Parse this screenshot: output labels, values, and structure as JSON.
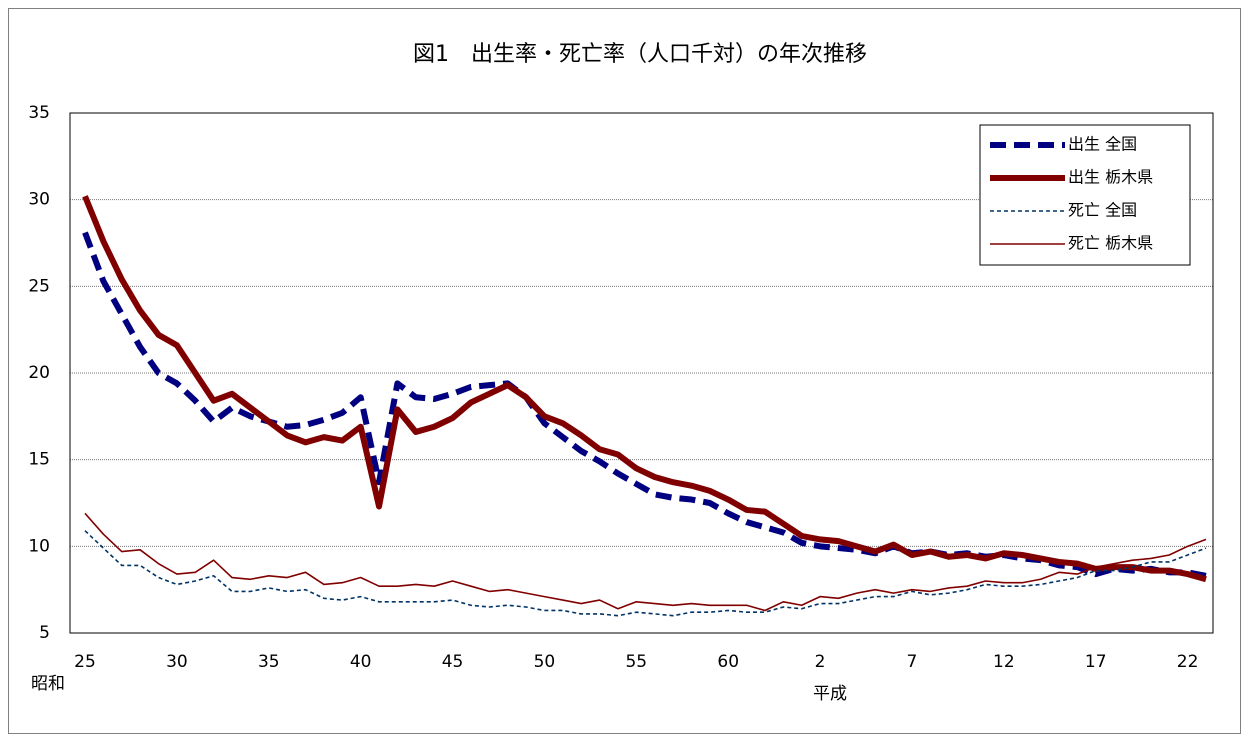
{
  "chart_data": {
    "type": "line",
    "title": "図1　出生率・死亡率（人口千対）の年次推移",
    "era_labels": [
      "昭和",
      "平成"
    ],
    "categories": [
      "25",
      null,
      null,
      null,
      null,
      "30",
      null,
      null,
      null,
      null,
      "35",
      null,
      null,
      null,
      null,
      "40",
      null,
      null,
      null,
      null,
      "45",
      null,
      null,
      null,
      null,
      "50",
      null,
      null,
      null,
      null,
      "55",
      null,
      null,
      null,
      null,
      "60",
      null,
      null,
      null,
      null,
      "2",
      null,
      null,
      null,
      null,
      "7",
      null,
      null,
      null,
      null,
      "12",
      null,
      null,
      null,
      null,
      "17",
      null,
      null,
      null,
      null,
      "22",
      null
    ],
    "ylim": [
      5,
      35
    ],
    "yticks": [
      5,
      10,
      15,
      20,
      25,
      30,
      35
    ],
    "grid": true,
    "legend": "upper right",
    "series": [
      {
        "name": "出生 全国",
        "color": "#000080",
        "dashed": true,
        "bold": true,
        "values": [
          28.1,
          25.3,
          23.4,
          21.5,
          20.0,
          19.4,
          18.4,
          17.2,
          18.0,
          17.5,
          17.2,
          16.9,
          17.0,
          17.3,
          17.7,
          18.6,
          13.7,
          19.4,
          18.6,
          18.5,
          18.8,
          19.2,
          19.3,
          19.4,
          18.6,
          17.1,
          16.3,
          15.5,
          14.9,
          14.2,
          13.6,
          13.0,
          12.8,
          12.7,
          12.5,
          11.9,
          11.4,
          11.1,
          10.8,
          10.2,
          10.0,
          9.9,
          9.8,
          9.6,
          10.0,
          9.6,
          9.7,
          9.5,
          9.6,
          9.4,
          9.5,
          9.3,
          9.2,
          8.9,
          8.8,
          8.4,
          8.7,
          8.6,
          8.7,
          8.5,
          8.5,
          8.3
        ]
      },
      {
        "name": "出生 栃木県",
        "color": "#800000",
        "dashed": false,
        "bold": true,
        "values": [
          30.2,
          27.6,
          25.4,
          23.6,
          22.2,
          21.6,
          20.0,
          18.4,
          18.8,
          18.0,
          17.2,
          16.4,
          16.0,
          16.3,
          16.1,
          16.9,
          12.3,
          17.9,
          16.6,
          16.9,
          17.4,
          18.3,
          18.8,
          19.3,
          18.6,
          17.5,
          17.1,
          16.4,
          15.6,
          15.3,
          14.5,
          14.0,
          13.7,
          13.5,
          13.2,
          12.7,
          12.1,
          12.0,
          11.3,
          10.6,
          10.4,
          10.3,
          10.0,
          9.7,
          10.1,
          9.5,
          9.7,
          9.4,
          9.5,
          9.3,
          9.6,
          9.5,
          9.3,
          9.1,
          9.0,
          8.7,
          8.8,
          8.8,
          8.6,
          8.6,
          8.4,
          8.1
        ]
      },
      {
        "name": "死亡 全国",
        "color": "#003366",
        "dashed": true,
        "bold": false,
        "values": [
          10.9,
          9.9,
          8.9,
          8.9,
          8.2,
          7.8,
          8.0,
          8.3,
          7.4,
          7.4,
          7.6,
          7.4,
          7.5,
          7.0,
          6.9,
          7.1,
          6.8,
          6.8,
          6.8,
          6.8,
          6.9,
          6.6,
          6.5,
          6.6,
          6.5,
          6.3,
          6.3,
          6.1,
          6.1,
          6.0,
          6.2,
          6.1,
          6.0,
          6.2,
          6.2,
          6.3,
          6.2,
          6.2,
          6.5,
          6.4,
          6.7,
          6.7,
          6.9,
          7.1,
          7.1,
          7.4,
          7.2,
          7.3,
          7.5,
          7.8,
          7.7,
          7.7,
          7.8,
          8.0,
          8.2,
          8.6,
          8.6,
          8.8,
          9.1,
          9.1,
          9.5,
          9.9
        ]
      },
      {
        "name": "死亡 栃木県",
        "color": "#800000",
        "dashed": false,
        "bold": false,
        "values": [
          11.9,
          10.7,
          9.7,
          9.8,
          9.0,
          8.4,
          8.5,
          9.2,
          8.2,
          8.1,
          8.3,
          8.2,
          8.5,
          7.8,
          7.9,
          8.2,
          7.7,
          7.7,
          7.8,
          7.7,
          8.0,
          7.7,
          7.4,
          7.5,
          7.3,
          7.1,
          6.9,
          6.7,
          6.9,
          6.4,
          6.8,
          6.7,
          6.6,
          6.7,
          6.6,
          6.6,
          6.6,
          6.3,
          6.8,
          6.6,
          7.1,
          7.0,
          7.3,
          7.5,
          7.3,
          7.5,
          7.4,
          7.6,
          7.7,
          8.0,
          7.9,
          7.9,
          8.1,
          8.5,
          8.4,
          8.8,
          9.0,
          9.2,
          9.3,
          9.5,
          10.0,
          10.4
        ]
      }
    ]
  }
}
